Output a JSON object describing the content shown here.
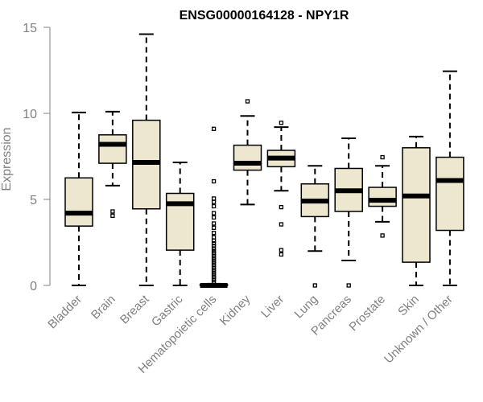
{
  "chart_data": {
    "type": "boxplot",
    "title": "ENSG00000164128 - NPY1R",
    "xlabel": "",
    "ylabel": "Expression",
    "ylim": [
      0,
      15
    ],
    "yticks": [
      0,
      5,
      10,
      15
    ],
    "box_color": "#ede7cf",
    "categories": [
      "Bladder",
      "Brain",
      "Breast",
      "Gastric",
      "Hematopoietic cells",
      "Kidney",
      "Liver",
      "Lung",
      "Pancreas",
      "Prostate",
      "Skin",
      "Unknown / Other"
    ],
    "boxes": [
      {
        "label": "Bladder",
        "min": 0.0,
        "q1": 3.45,
        "median": 4.2,
        "q3": 6.25,
        "max": 10.05,
        "outliers": []
      },
      {
        "label": "Brain",
        "min": 5.8,
        "q1": 7.1,
        "median": 8.2,
        "q3": 8.75,
        "max": 10.1,
        "outliers": [
          4.05,
          4.3
        ]
      },
      {
        "label": "Breast",
        "min": 0.0,
        "q1": 4.45,
        "median": 7.15,
        "q3": 9.6,
        "max": 14.6,
        "outliers": []
      },
      {
        "label": "Gastric",
        "min": 0.0,
        "q1": 2.05,
        "median": 4.75,
        "q3": 5.35,
        "max": 7.15,
        "outliers": []
      },
      {
        "label": "Hematopoietic cells",
        "min": 0.0,
        "q1": 0.0,
        "median": 0.0,
        "q3": 0.05,
        "max": 0.1,
        "outliers": [
          9.1,
          6.05,
          5.05,
          4.85,
          4.6,
          4.2,
          3.95,
          3.6,
          3.35,
          3.05,
          2.8,
          2.6,
          2.45,
          2.3,
          2.15,
          2.0,
          1.9,
          1.8,
          1.7,
          1.6,
          1.5,
          1.4,
          1.3,
          1.2,
          1.1,
          1.0,
          0.9,
          0.8,
          0.7,
          0.6,
          0.5,
          0.4,
          0.3,
          0.2
        ]
      },
      {
        "label": "Kidney",
        "min": 4.7,
        "q1": 6.7,
        "median": 7.1,
        "q3": 8.15,
        "max": 9.85,
        "outliers": [
          10.7
        ]
      },
      {
        "label": "Liver",
        "min": 5.5,
        "q1": 6.9,
        "median": 7.4,
        "q3": 7.85,
        "max": 9.2,
        "outliers": [
          9.45,
          4.55,
          3.55,
          2.05,
          1.8
        ]
      },
      {
        "label": "Lung",
        "min": 2.0,
        "q1": 4.0,
        "median": 4.9,
        "q3": 5.9,
        "max": 6.95,
        "outliers": [
          0.0
        ]
      },
      {
        "label": "Pancreas",
        "min": 1.45,
        "q1": 4.3,
        "median": 5.5,
        "q3": 6.8,
        "max": 8.55,
        "outliers": [
          0.0
        ]
      },
      {
        "label": "Prostate",
        "min": 3.7,
        "q1": 4.6,
        "median": 4.95,
        "q3": 5.7,
        "max": 6.95,
        "outliers": [
          7.45,
          2.9
        ]
      },
      {
        "label": "Skin",
        "min": 0.0,
        "q1": 1.35,
        "median": 5.2,
        "q3": 8.0,
        "max": 8.65,
        "outliers": []
      },
      {
        "label": "Unknown / Other",
        "min": 0.0,
        "q1": 3.2,
        "median": 6.1,
        "q3": 7.45,
        "max": 12.45,
        "outliers": []
      }
    ]
  }
}
